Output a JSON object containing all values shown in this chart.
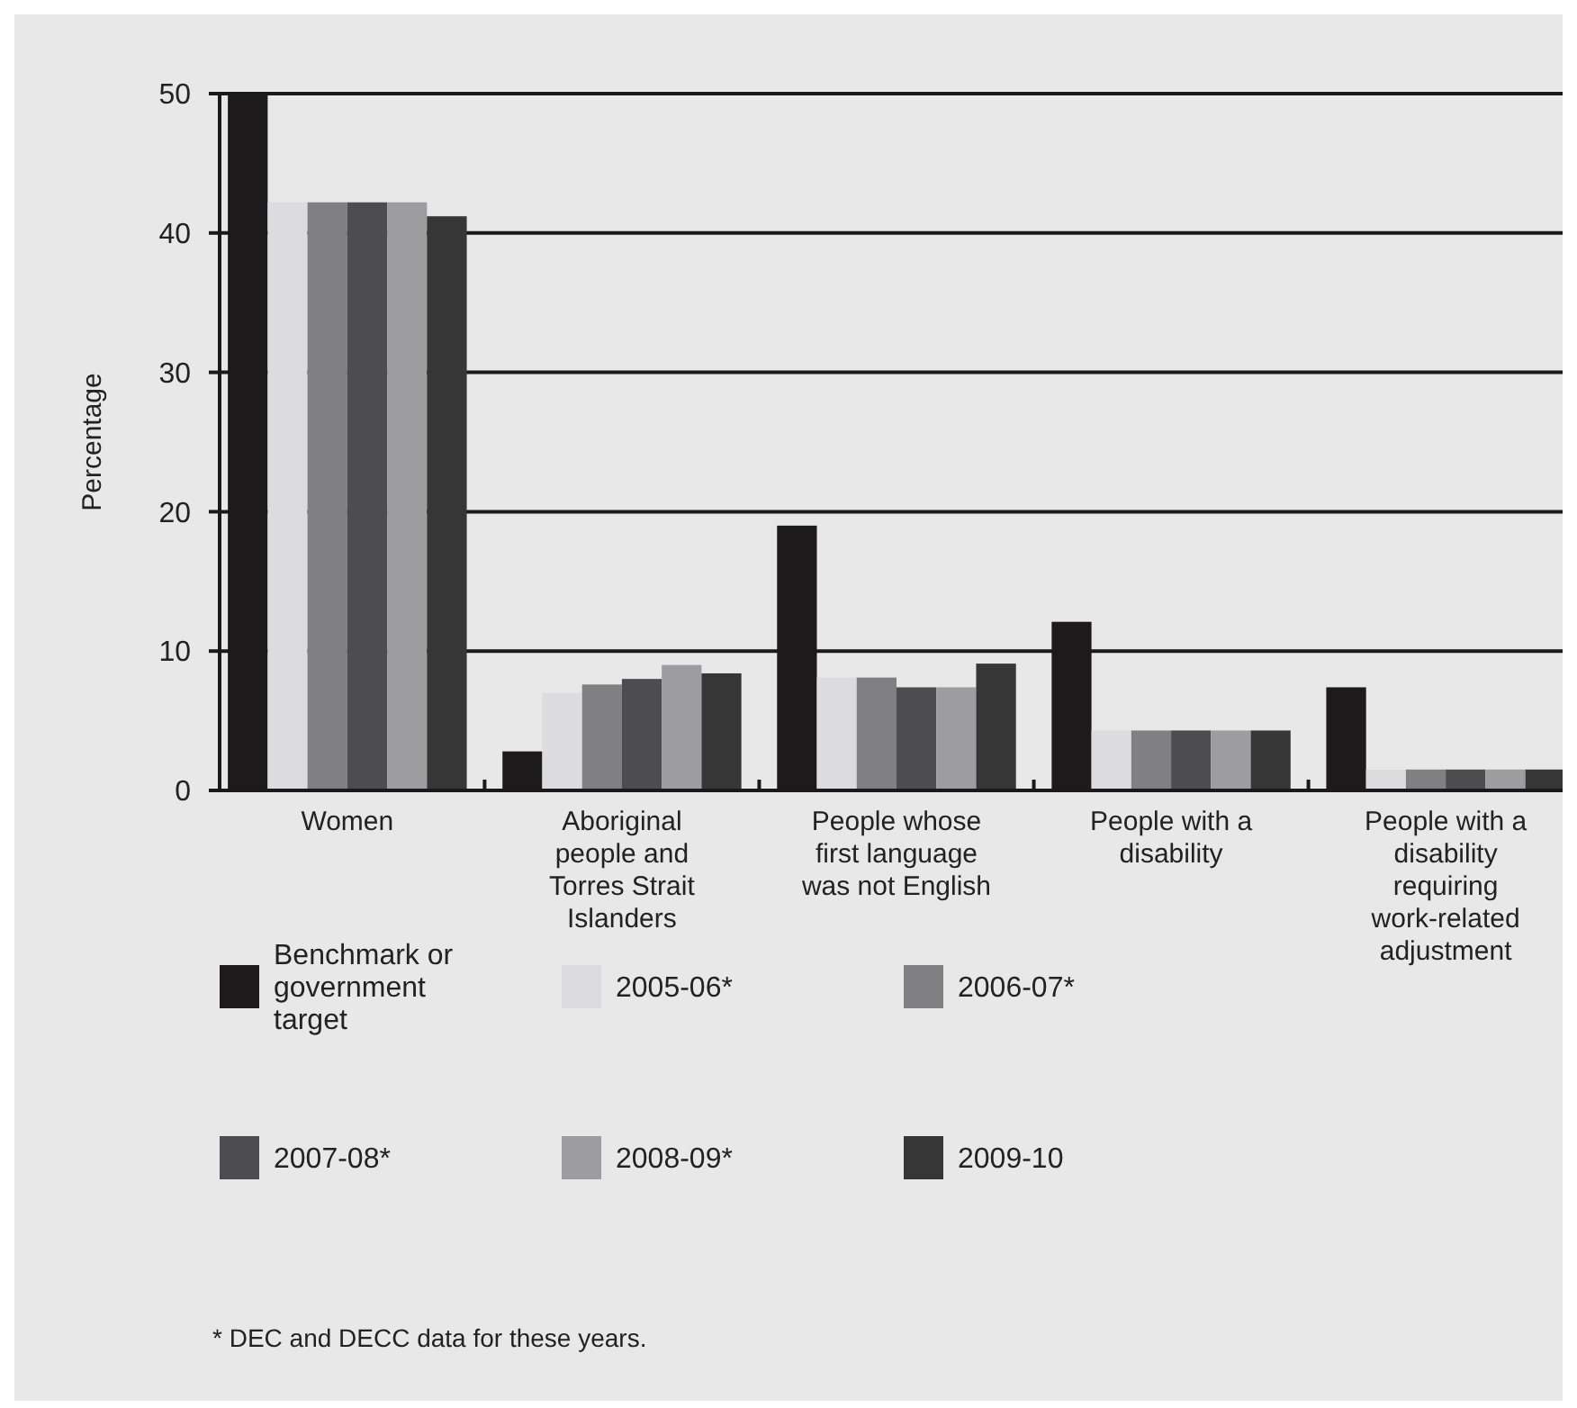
{
  "chart_data": {
    "type": "bar",
    "ylabel": "Percentage",
    "categories": [
      "Women",
      "Aboriginal people and Torres Strait Islanders",
      "People whose first language was not English",
      "People with a disability",
      "People with a disability requiring work-related adjustment"
    ],
    "series": [
      {
        "name": "Benchmark or government target",
        "color": "#1c1a1b",
        "values": [
          50,
          2.8,
          19,
          12.1,
          7.4
        ]
      },
      {
        "name": "2005-06*",
        "color": "#dcdcde",
        "values": [
          42.2,
          7,
          8.1,
          4.3,
          1.5
        ]
      },
      {
        "name": "2006-07*",
        "color": "#808083",
        "values": [
          42.2,
          7.6,
          8.1,
          4.3,
          1.5
        ]
      },
      {
        "name": "2007-08*",
        "color": "#4d4d4f",
        "values": [
          42.2,
          8,
          7.4,
          4.3,
          1.5
        ]
      },
      {
        "name": "2008-09*",
        "color": "#9d9da0",
        "values": [
          42.2,
          9,
          7.4,
          4.3,
          1.5
        ]
      },
      {
        "name": "2009-10",
        "color": "#363636",
        "values": [
          41.2,
          8.4,
          9.1,
          4.3,
          1.5
        ]
      }
    ],
    "ylim": [
      0,
      50
    ],
    "yticks": [
      0,
      10,
      20,
      30,
      40,
      50
    ],
    "grid": "y",
    "legend": "bottom",
    "annotations": [
      "* DEC and DECC data for these years."
    ]
  }
}
